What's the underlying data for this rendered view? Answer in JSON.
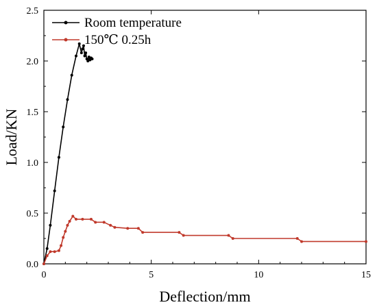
{
  "chart_data": {
    "type": "line",
    "title": "",
    "xlabel": "Deflection/mm",
    "ylabel": "Load/KN",
    "xlim": [
      0,
      15
    ],
    "ylim": [
      0,
      2.5
    ],
    "xticks": [
      0,
      5,
      10,
      15
    ],
    "yticks": [
      0.0,
      0.5,
      1.0,
      1.5,
      2.0,
      2.5
    ],
    "xtick_labels": [
      "0",
      "5",
      "10",
      "15"
    ],
    "ytick_labels": [
      "0.0",
      "0.5",
      "1.0",
      "1.5",
      "2.0",
      "2.5"
    ],
    "grid": false,
    "legend_position": "top-left",
    "series": [
      {
        "name": "Room temperature",
        "color": "#000000",
        "x": [
          0,
          0.15,
          0.3,
          0.5,
          0.7,
          0.9,
          1.1,
          1.3,
          1.5,
          1.65,
          1.75,
          1.8,
          1.85,
          1.9,
          1.95,
          2.0,
          2.05,
          2.1,
          2.15,
          2.2,
          2.25
        ],
        "y": [
          0,
          0.15,
          0.38,
          0.72,
          1.05,
          1.35,
          1.62,
          1.86,
          2.05,
          2.17,
          2.08,
          2.12,
          2.15,
          2.05,
          2.08,
          2.02,
          2.0,
          2.04,
          2.01,
          2.03,
          2.02
        ]
      },
      {
        "name": "150℃ 0.25h",
        "color": "#c0392b",
        "x": [
          0,
          0.15,
          0.3,
          0.5,
          0.7,
          0.8,
          0.9,
          1.0,
          1.1,
          1.2,
          1.35,
          1.5,
          1.8,
          2.2,
          2.4,
          2.8,
          3.1,
          3.3,
          3.9,
          4.4,
          4.6,
          6.3,
          6.5,
          8.6,
          8.8,
          11.8,
          12.0,
          15
        ],
        "y": [
          0,
          0.08,
          0.12,
          0.12,
          0.13,
          0.18,
          0.26,
          0.32,
          0.38,
          0.42,
          0.47,
          0.44,
          0.44,
          0.44,
          0.41,
          0.41,
          0.38,
          0.36,
          0.35,
          0.35,
          0.31,
          0.31,
          0.28,
          0.28,
          0.25,
          0.25,
          0.22,
          0.22
        ]
      }
    ]
  }
}
